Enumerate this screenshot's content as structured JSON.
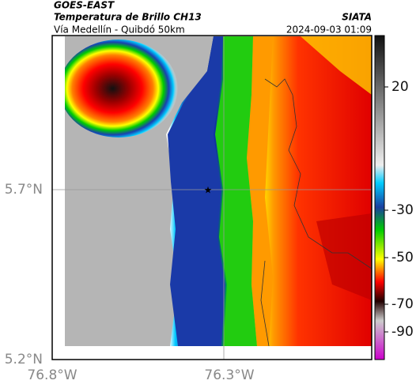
{
  "header": {
    "satellite": "GOES-EAST",
    "product": "Temperatura de Brillo CH13",
    "route": "Vía Medellín - Quibdó 50km",
    "source": "SIATA",
    "timestamp": "2024-09-03 01:09"
  },
  "axes": {
    "lat_labels": [
      "5.7°N",
      "5.2°N"
    ],
    "lon_labels": [
      "76.8°W",
      "76.3°W"
    ]
  },
  "colorbar": {
    "ticks": [
      20,
      -30,
      -50,
      -70,
      -90
    ]
  }
}
